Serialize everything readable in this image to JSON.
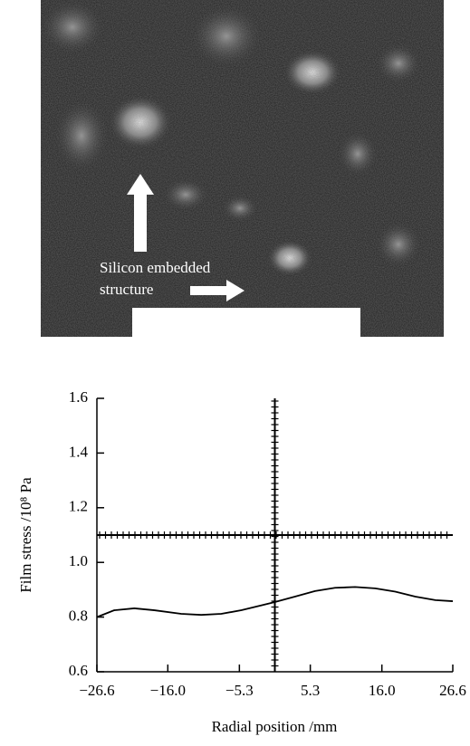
{
  "image": {
    "label_lines": [
      "Silicon embedded",
      "structure"
    ]
  },
  "chart_data": {
    "type": "line",
    "x_label": "Radial position /mm",
    "y_label": "Film stress /10⁸ Pa",
    "x": [
      -26.6,
      -24,
      -21,
      -18,
      -14,
      -11,
      -8,
      -5,
      -2,
      0,
      3,
      6,
      9,
      12,
      15,
      18,
      21,
      24,
      26.6
    ],
    "series": [
      {
        "color": "#000000",
        "values": [
          0.8,
          0.825,
          0.832,
          0.825,
          0.812,
          0.808,
          0.812,
          0.825,
          0.843,
          0.855,
          0.875,
          0.895,
          0.907,
          0.91,
          0.905,
          0.893,
          0.875,
          0.862,
          0.858
        ]
      }
    ],
    "xlim": [
      -26.6,
      26.6
    ],
    "xticks": [
      {
        "value": -26.6,
        "label": "−26.6"
      },
      {
        "value": -16.0,
        "label": "−16.0"
      },
      {
        "value": -5.3,
        "label": "−5.3"
      },
      5.3,
      {
        "value": 16.0,
        "label": "16.0"
      },
      26.6
    ],
    "ylim": [
      0.6,
      1.6
    ],
    "yticks": [
      0.6,
      0.8,
      {
        "value": 1.0,
        "label": "1.0"
      },
      1.2,
      1.4,
      1.6
    ],
    "crosshair": {
      "x": 0,
      "y": 1.1
    }
  }
}
